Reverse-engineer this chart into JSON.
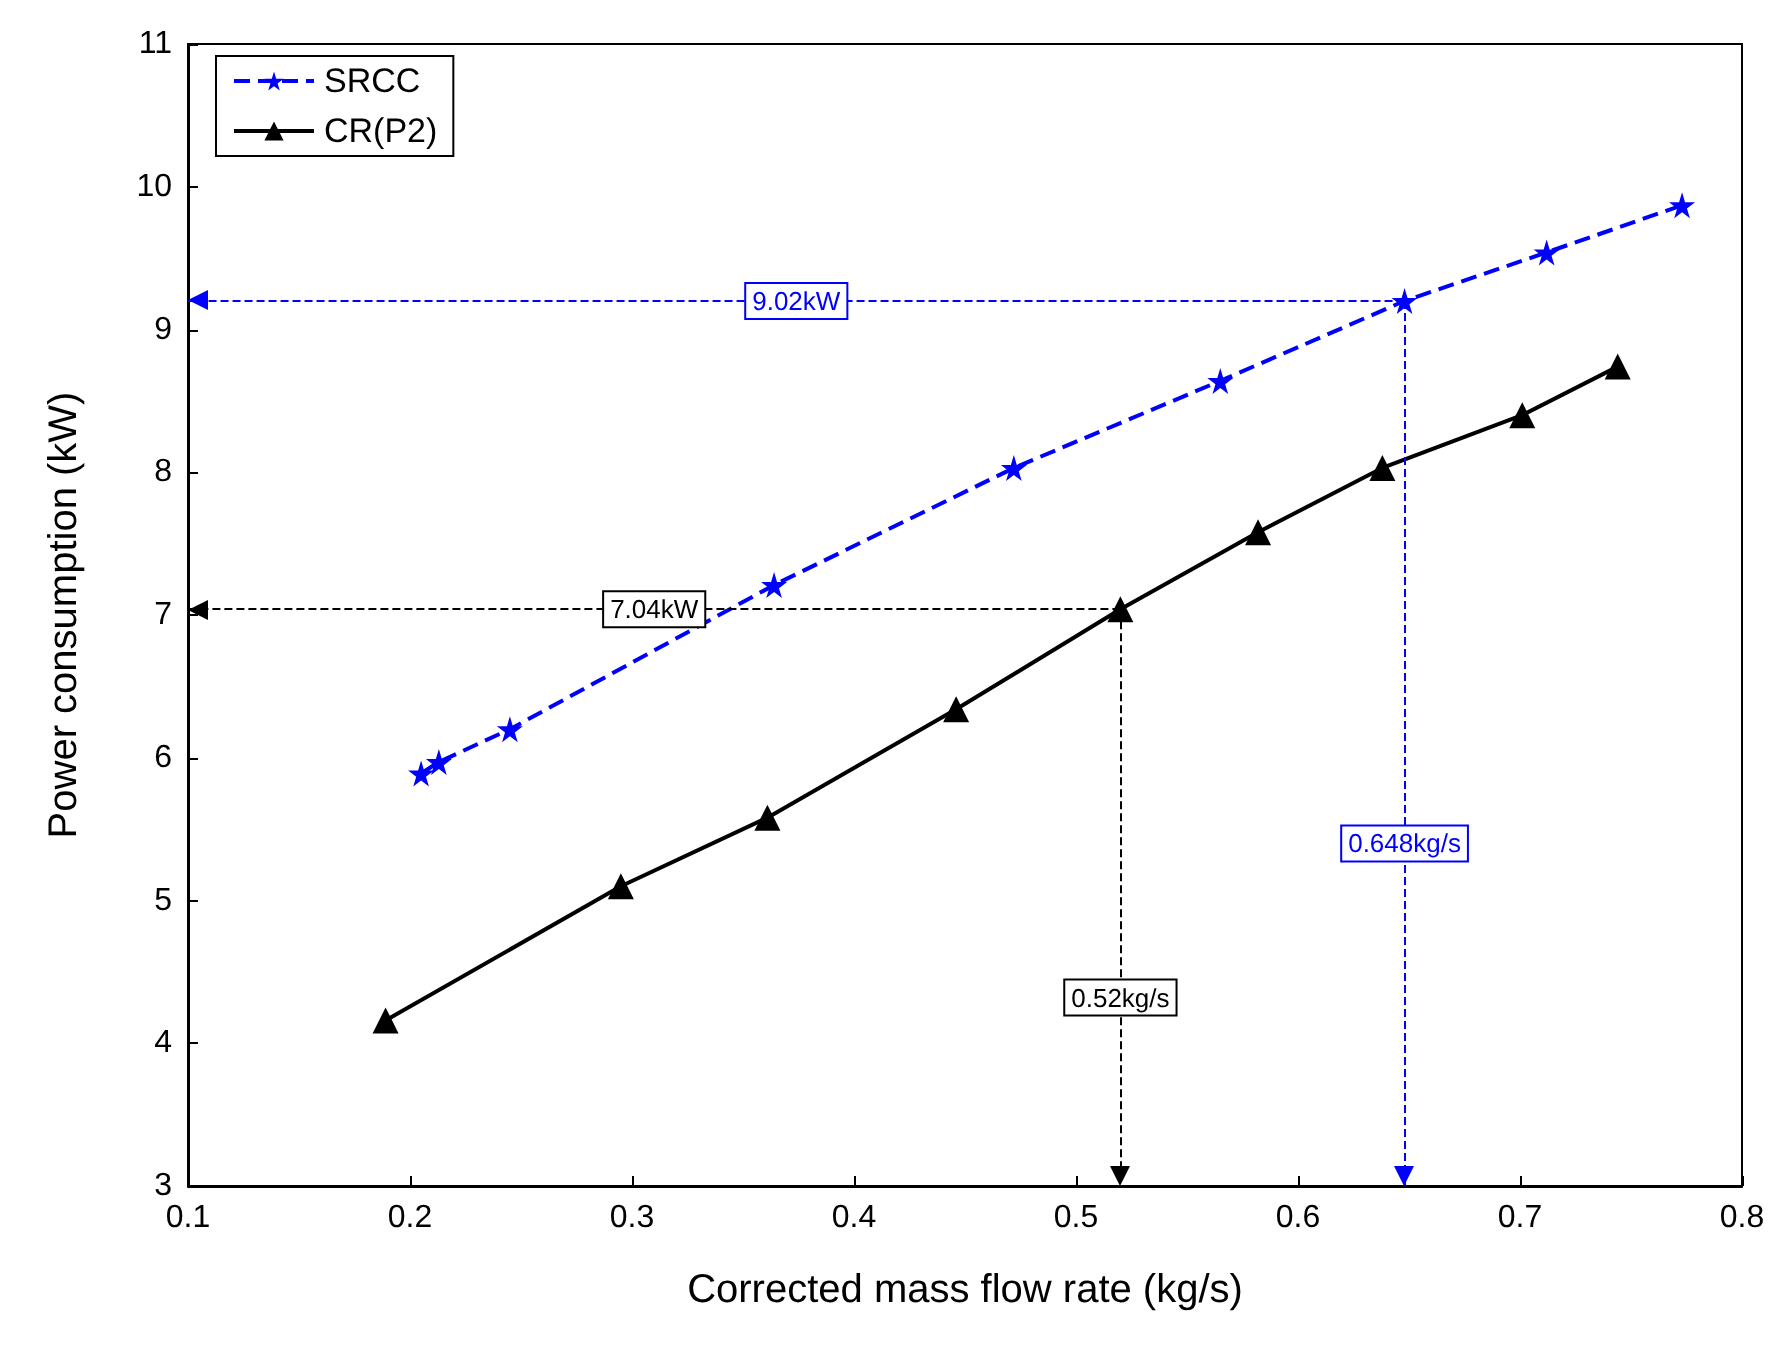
{
  "chart_data": {
    "type": "line",
    "xlabel": "Corrected mass flow rate (kg/s)",
    "ylabel": "Power consumption (kW)",
    "xlim": [
      0.1,
      0.8
    ],
    "xticks": [
      0.1,
      0.2,
      0.3,
      0.4,
      0.5,
      0.6,
      0.7,
      0.8
    ],
    "ylim": [
      3,
      11
    ],
    "yticks": [
      3,
      4,
      5,
      6,
      7,
      8,
      9,
      10,
      11
    ],
    "grid": false,
    "legend": "top left",
    "series": [
      {
        "name": "SRCC",
        "color": "#0000ff",
        "marker": "star",
        "line_style": "dashed",
        "x": [
          0.205,
          0.213,
          0.245,
          0.364,
          0.472,
          0.565,
          0.648,
          0.712,
          0.773
        ],
        "values": [
          5.89,
          5.97,
          6.2,
          7.21,
          8.03,
          8.64,
          9.2,
          9.54,
          9.87
        ]
      },
      {
        "name": "CR(P2)",
        "color": "#000000",
        "marker": "triangle",
        "line_style": "solid",
        "x": [
          0.189,
          0.295,
          0.361,
          0.446,
          0.52,
          0.582,
          0.638,
          0.701,
          0.744
        ],
        "values": [
          4.16,
          5.1,
          5.58,
          6.34,
          7.04,
          7.58,
          8.03,
          8.4,
          8.74
        ]
      }
    ],
    "ref_lines": [
      {
        "axis": "y",
        "value": 9.2,
        "label": "9.02kW",
        "color": "#0000ff",
        "line_style": "dashed"
      },
      {
        "axis": "x",
        "value": 0.648,
        "label": "0.648kg/s",
        "color": "#0000ff",
        "line_style": "dashed"
      },
      {
        "axis": "y",
        "value": 7.04,
        "label": "7.04kW",
        "color": "#000000",
        "line_style": "dashed"
      },
      {
        "axis": "x",
        "value": 0.52,
        "label": "0.52kg/s",
        "color": "#000000",
        "line_style": "dashed"
      }
    ]
  }
}
